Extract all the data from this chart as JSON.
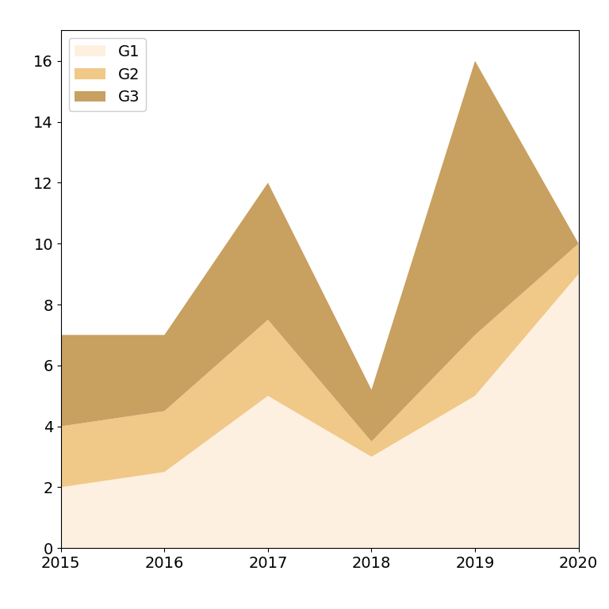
{
  "years": [
    2015,
    2016,
    2017,
    2018,
    2019,
    2020
  ],
  "G1": [
    2,
    2.5,
    5,
    3,
    5,
    9
  ],
  "G2": [
    2,
    2,
    2.5,
    0.5,
    2,
    1
  ],
  "G3": [
    3,
    2.5,
    4.5,
    1.7,
    9,
    0
  ],
  "colors": [
    "#fdf0e0",
    "#f0c888",
    "#c8a060"
  ],
  "labels": [
    "G1",
    "G2",
    "G3"
  ],
  "ylim": [
    0,
    17
  ],
  "xlim": [
    2015,
    2020
  ],
  "title": "",
  "figsize": [
    7.68,
    7.68
  ],
  "dpi": 100
}
